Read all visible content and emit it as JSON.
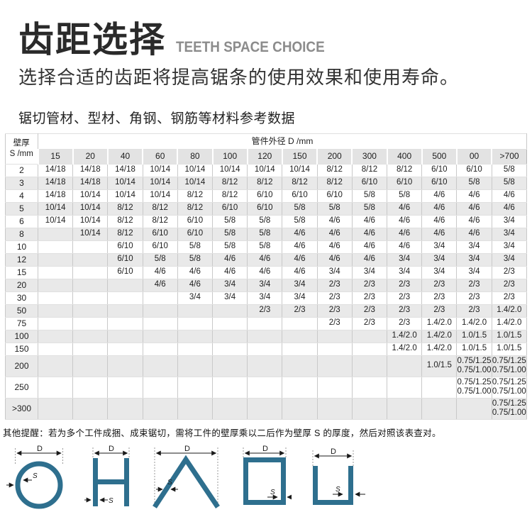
{
  "page": {
    "title_cn": "齿距选择",
    "title_en": "TEETH SPACE CHOICE",
    "subtitle": "选择合适的齿距将提高锯条的使用效果和使用寿命。",
    "section_label": "锯切管材、型材、角钢、钢筋等材料参考数据",
    "note": "其他提醒：若为多个工件成捆、成束锯切，需将工件的壁厚乘以二后作为壁厚 S 的厚度，然后对照该表查对。"
  },
  "table": {
    "corner_header_line1": "壁厚",
    "corner_header_line2": "S /mm",
    "span_header": "管件外径 D /mm",
    "columns": [
      "15",
      "20",
      "40",
      "60",
      "80",
      "100",
      "120",
      "150",
      "200",
      "300",
      "400",
      "500",
      "00",
      ">700"
    ],
    "rows": [
      {
        "label": "2",
        "values": [
          "14/18",
          "14/18",
          "14/18",
          "10/14",
          "10/14",
          "10/14",
          "10/14",
          "10/14",
          "8/12",
          "8/12",
          "8/12",
          "6/10",
          "6/10",
          "5/8"
        ]
      },
      {
        "label": "3",
        "values": [
          "14/18",
          "14/18",
          "10/14",
          "10/14",
          "10/14",
          "8/12",
          "8/12",
          "8/12",
          "8/12",
          "6/10",
          "6/10",
          "6/10",
          "5/8",
          "5/8"
        ]
      },
      {
        "label": "4",
        "values": [
          "14/18",
          "10/14",
          "10/14",
          "10/14",
          "8/12",
          "8/12",
          "6/10",
          "6/10",
          "6/10",
          "5/8",
          "5/8",
          "4/6",
          "4/6",
          "4/6"
        ]
      },
      {
        "label": "5",
        "values": [
          "10/14",
          "10/14",
          "8/12",
          "8/12",
          "8/12",
          "6/10",
          "6/10",
          "5/8",
          "5/8",
          "5/8",
          "4/6",
          "4/6",
          "4/6",
          "4/6"
        ]
      },
      {
        "label": "6",
        "values": [
          "10/14",
          "10/14",
          "8/12",
          "8/12",
          "6/10",
          "5/8",
          "5/8",
          "5/8",
          "4/6",
          "4/6",
          "4/6",
          "4/6",
          "4/6",
          "3/4"
        ]
      },
      {
        "label": "8",
        "values": [
          "",
          "10/14",
          "8/12",
          "6/10",
          "6/10",
          "5/8",
          "5/8",
          "4/6",
          "4/6",
          "4/6",
          "4/6",
          "4/6",
          "4/6",
          "3/4"
        ]
      },
      {
        "label": "10",
        "values": [
          "",
          "",
          "6/10",
          "6/10",
          "5/8",
          "5/8",
          "5/8",
          "4/6",
          "4/6",
          "4/6",
          "4/6",
          "3/4",
          "3/4",
          "3/4"
        ]
      },
      {
        "label": "12",
        "values": [
          "",
          "",
          "6/10",
          "5/8",
          "5/8",
          "4/6",
          "4/6",
          "4/6",
          "4/6",
          "4/6",
          "3/4",
          "3/4",
          "3/4",
          "3/4"
        ]
      },
      {
        "label": "15",
        "values": [
          "",
          "",
          "6/10",
          "4/6",
          "4/6",
          "4/6",
          "4/6",
          "4/6",
          "3/4",
          "3/4",
          "3/4",
          "3/4",
          "3/4",
          "2/3"
        ]
      },
      {
        "label": "20",
        "values": [
          "",
          "",
          "",
          "4/6",
          "4/6",
          "3/4",
          "3/4",
          "3/4",
          "2/3",
          "2/3",
          "2/3",
          "2/3",
          "2/3",
          "2/3"
        ]
      },
      {
        "label": "30",
        "values": [
          "",
          "",
          "",
          "",
          "3/4",
          "3/4",
          "3/4",
          "3/4",
          "2/3",
          "2/3",
          "2/3",
          "2/3",
          "2/3",
          "2/3"
        ]
      },
      {
        "label": "50",
        "values": [
          "",
          "",
          "",
          "",
          "",
          "",
          "2/3",
          "2/3",
          "2/3",
          "2/3",
          "2/3",
          "2/3",
          "2/3",
          "1.4/2.0"
        ]
      },
      {
        "label": "75",
        "values": [
          "",
          "",
          "",
          "",
          "",
          "",
          "",
          "",
          "2/3",
          "2/3",
          "2/3",
          "1.4/2.0",
          "1.4/2.0",
          "1.4/2.0"
        ]
      },
      {
        "label": "100",
        "values": [
          "",
          "",
          "",
          "",
          "",
          "",
          "",
          "",
          "",
          "",
          "1.4/2.0",
          "1.4/2.0",
          "1.0/1.5",
          "1.0/1.5"
        ]
      },
      {
        "label": "150",
        "values": [
          "",
          "",
          "",
          "",
          "",
          "",
          "",
          "",
          "",
          "",
          "1.4/2.0",
          "1.4/2.0",
          "1.0/1.5",
          "1.0/1.5"
        ]
      },
      {
        "label": "200",
        "values": [
          "",
          "",
          "",
          "",
          "",
          "",
          "",
          "",
          "",
          "",
          "",
          "1.0/1.5",
          "0.75/1.25\n0.75/1.00",
          "0.75/1.25\n0.75/1.00"
        ]
      },
      {
        "label": "250",
        "values": [
          "",
          "",
          "",
          "",
          "",
          "",
          "",
          "",
          "",
          "",
          "",
          "",
          "0.75/1.25\n0.75/1.00",
          "0.75/1.25\n0.75/1.00"
        ]
      },
      {
        "label": ">300",
        "values": [
          "",
          "",
          "",
          "",
          "",
          "",
          "",
          "",
          "",
          "",
          "",
          "",
          "",
          "0.75/1.25\n0.75/1.00"
        ]
      }
    ]
  },
  "diagrams": {
    "dimension_label": "D",
    "thickness_label": "S",
    "shape_color": "#2e6f8e",
    "shapes": [
      "round-pipe",
      "h-beam",
      "angle-steel",
      "square-tube",
      "u-channel"
    ]
  },
  "colors": {
    "row_stripe": "#e9e9e9",
    "header_gray": "#e3e3e3",
    "title_en_gray": "#8c8c8c",
    "diagram_teal": "#2e6f8e"
  }
}
